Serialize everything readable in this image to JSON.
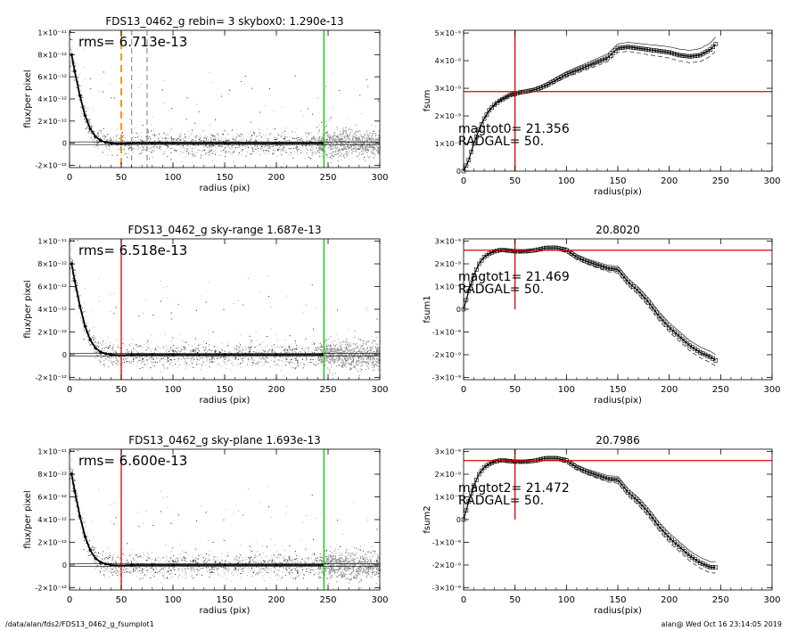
{
  "footer": {
    "left": "/data/alan/fds2/FDS13_0462_g_fsumplot1",
    "right": "alan@  Wed Oct 16 23:14:05 2019"
  },
  "chart_data": [
    {
      "type": "scatter",
      "title": "FDS13_0462_g rebin= 3    skybox0:  1.290e-13",
      "xlabel": "radius (pix)",
      "ylabel": "flux/per pixel",
      "xlim": [
        0,
        300
      ],
      "ylim": [
        -2.2e-12,
        1.02e-11
      ],
      "x_ticks": [
        0,
        50,
        100,
        150,
        200,
        250,
        300
      ],
      "y_ticks": [
        -2e-12,
        0,
        2e-12,
        4e-12,
        6e-12,
        8e-12,
        1e-11
      ],
      "y_tick_labels": [
        "-2×10⁻¹²",
        "0",
        "2×10⁻¹²",
        "4×10⁻¹²",
        "6×10⁻¹²",
        "8×10⁻¹²",
        "1×10⁻¹¹"
      ],
      "annotations": [
        "rms= 6.713e-13"
      ],
      "profile": {
        "x": [
          2,
          5,
          10,
          15,
          20,
          25,
          30,
          35,
          40,
          50,
          60,
          80,
          100,
          150,
          200,
          245
        ],
        "y": [
          8e-12,
          6.5e-12,
          4.3e-12,
          2.5e-12,
          1.3e-12,
          6e-13,
          2.5e-13,
          8e-14,
          0.0,
          -5e-14,
          0.0,
          0.0,
          0.0,
          0.0,
          0.0,
          0.0
        ]
      },
      "vlines": [
        {
          "x": 50,
          "color": "#ff8800",
          "style": "dashed"
        },
        {
          "x": 60,
          "color": "#999999",
          "style": "dashed"
        },
        {
          "x": 75,
          "color": "#999999",
          "style": "dashed"
        },
        {
          "x": 246,
          "color": "#00cc00",
          "style": "solid"
        }
      ],
      "hlines": [
        0
      ]
    },
    {
      "type": "line",
      "title": "",
      "xlabel": "radius(pix)",
      "ylabel": "fsum",
      "xlim": [
        0,
        300
      ],
      "ylim": [
        0,
        5.1e-09
      ],
      "x_ticks": [
        0,
        50,
        100,
        150,
        200,
        250,
        300
      ],
      "y_ticks": [
        0,
        1e-09,
        2e-09,
        3e-09,
        4e-09,
        5e-09
      ],
      "y_tick_labels": [
        "0",
        "1×10⁻⁹",
        "2×10⁻⁹",
        "3×10⁻⁹",
        "4×10⁻⁹",
        "5×10⁻⁹"
      ],
      "annotations": [
        "magtot0=  21.356",
        "RADGAL=     50."
      ],
      "series": [
        {
          "x": [
            0,
            5,
            10,
            15,
            20,
            25,
            30,
            35,
            40,
            45,
            50,
            55,
            60,
            70,
            80,
            90,
            100,
            110,
            120,
            130,
            140,
            150,
            160,
            170,
            180,
            190,
            200,
            210,
            220,
            230,
            240,
            245
          ],
          "y": [
            0,
            4e-10,
            1e-09,
            1.5e-09,
            1.9e-09,
            2.2e-09,
            2.4e-09,
            2.55e-09,
            2.65e-09,
            2.75e-09,
            2.8e-09,
            2.85e-09,
            2.88e-09,
            2.95e-09,
            3.1e-09,
            3.3e-09,
            3.5e-09,
            3.65e-09,
            3.8e-09,
            3.95e-09,
            4.1e-09,
            4.45e-09,
            4.5e-09,
            4.45e-09,
            4.4e-09,
            4.35e-09,
            4.3e-09,
            4.2e-09,
            4.15e-09,
            4.2e-09,
            4.4e-09,
            4.6e-09
          ]
        }
      ],
      "vlines": [
        {
          "x": 50,
          "color": "#dd0000"
        }
      ],
      "hlines": [
        {
          "y": 2.88e-09,
          "color": "#dd0000"
        }
      ]
    },
    {
      "type": "scatter",
      "title": "FDS13_0462_g sky-range  1.687e-13",
      "xlabel": "radius (pix)",
      "ylabel": "flux/per pixel",
      "xlim": [
        0,
        300
      ],
      "ylim": [
        -2.2e-12,
        1.02e-11
      ],
      "x_ticks": [
        0,
        50,
        100,
        150,
        200,
        250,
        300
      ],
      "y_ticks": [
        -2e-12,
        0,
        2e-12,
        4e-12,
        6e-12,
        8e-12,
        1e-11
      ],
      "y_tick_labels": [
        "-2×10⁻¹²",
        "0",
        "2×10⁻¹²",
        "4×10⁻¹²",
        "6×10⁻¹²",
        "8×10⁻¹²",
        "1×10⁻¹¹"
      ],
      "annotations": [
        "rms= 6.518e-13"
      ],
      "profile": {
        "x": [
          2,
          5,
          10,
          15,
          20,
          25,
          30,
          35,
          40,
          50,
          60,
          80,
          100,
          150,
          200,
          245
        ],
        "y": [
          8e-12,
          6.5e-12,
          4.3e-12,
          2.5e-12,
          1.3e-12,
          6e-13,
          2.5e-13,
          8e-14,
          0.0,
          -5e-14,
          0.0,
          0.0,
          0.0,
          0.0,
          0.0,
          0.0
        ]
      },
      "vlines": [
        {
          "x": 50,
          "color": "#dd0000",
          "style": "solid"
        },
        {
          "x": 246,
          "color": "#00cc00",
          "style": "solid"
        }
      ],
      "hlines": [
        0
      ]
    },
    {
      "type": "line",
      "title": "20.8020",
      "xlabel": "radius(pix)",
      "ylabel": "fsum1",
      "xlim": [
        0,
        300
      ],
      "ylim": [
        -3.1e-09,
        3.1e-09
      ],
      "x_ticks": [
        0,
        50,
        100,
        150,
        200,
        250,
        300
      ],
      "y_ticks": [
        -3e-09,
        -2e-09,
        -1e-09,
        0,
        1e-09,
        2e-09,
        3e-09
      ],
      "y_tick_labels": [
        "-3×10⁻⁹",
        "-2×10⁻⁹",
        "-1×10⁻⁹",
        "0",
        "1×10⁻⁹",
        "2×10⁻⁹",
        "3×10⁻⁹"
      ],
      "annotations": [
        "magtot1=  21.469",
        "RADGAL=     50."
      ],
      "series": [
        {
          "x": [
            0,
            5,
            10,
            15,
            20,
            25,
            30,
            35,
            40,
            50,
            60,
            70,
            80,
            90,
            100,
            110,
            120,
            130,
            140,
            150,
            160,
            170,
            180,
            190,
            200,
            210,
            220,
            230,
            240,
            245
          ],
          "y": [
            0,
            8e-10,
            1.5e-09,
            2e-09,
            2.3e-09,
            2.45e-09,
            2.55e-09,
            2.6e-09,
            2.6e-09,
            2.55e-09,
            2.55e-09,
            2.6e-09,
            2.7e-09,
            2.7e-09,
            2.6e-09,
            2.3e-09,
            2.1e-09,
            1.95e-09,
            1.8e-09,
            1.75e-09,
            1.2e-09,
            8e-10,
            3e-10,
            -3e-10,
            -8e-10,
            -1.2e-09,
            -1.6e-09,
            -1.9e-09,
            -2.1e-09,
            -2.25e-09
          ]
        }
      ],
      "vlines": [
        {
          "x": 50,
          "color": "#dd0000"
        }
      ],
      "hlines": [
        {
          "y": 2.6e-09,
          "color": "#dd0000"
        }
      ]
    },
    {
      "type": "scatter",
      "title": "FDS13_0462_g sky-plane  1.693e-13",
      "xlabel": "radius (pix)",
      "ylabel": "flux/per pixel",
      "xlim": [
        0,
        300
      ],
      "ylim": [
        -2.2e-12,
        1.02e-11
      ],
      "x_ticks": [
        0,
        50,
        100,
        150,
        200,
        250,
        300
      ],
      "y_ticks": [
        -2e-12,
        0,
        2e-12,
        4e-12,
        6e-12,
        8e-12,
        1e-11
      ],
      "y_tick_labels": [
        "-2×10⁻¹²",
        "0",
        "2×10⁻¹²",
        "4×10⁻¹²",
        "6×10⁻¹²",
        "8×10⁻¹²",
        "1×10⁻¹¹"
      ],
      "annotations": [
        "rms= 6.600e-13"
      ],
      "profile": {
        "x": [
          2,
          5,
          10,
          15,
          20,
          25,
          30,
          35,
          40,
          50,
          60,
          80,
          100,
          150,
          200,
          245
        ],
        "y": [
          8e-12,
          6.5e-12,
          4.3e-12,
          2.5e-12,
          1.3e-12,
          6e-13,
          2.5e-13,
          8e-14,
          0.0,
          -5e-14,
          0.0,
          0.0,
          0.0,
          0.0,
          0.0,
          0.0
        ]
      },
      "vlines": [
        {
          "x": 50,
          "color": "#dd0000",
          "style": "solid"
        },
        {
          "x": 246,
          "color": "#00cc00",
          "style": "solid"
        }
      ],
      "hlines": [
        0
      ]
    },
    {
      "type": "line",
      "title": "20.7986",
      "xlabel": "radius(pix)",
      "ylabel": "fsum2",
      "xlim": [
        0,
        300
      ],
      "ylim": [
        -3.1e-09,
        3.1e-09
      ],
      "x_ticks": [
        0,
        50,
        100,
        150,
        200,
        250,
        300
      ],
      "y_ticks": [
        -3e-09,
        -2e-09,
        -1e-09,
        0,
        1e-09,
        2e-09,
        3e-09
      ],
      "y_tick_labels": [
        "-3×10⁻⁹",
        "-2×10⁻⁹",
        "-1×10⁻⁹",
        "0",
        "1×10⁻⁹",
        "2×10⁻⁹",
        "3×10⁻⁹"
      ],
      "annotations": [
        "magtot2=  21.472",
        "RADGAL=     50."
      ],
      "series": [
        {
          "x": [
            0,
            5,
            10,
            15,
            20,
            25,
            30,
            35,
            40,
            50,
            60,
            70,
            80,
            90,
            100,
            110,
            120,
            130,
            140,
            150,
            160,
            170,
            180,
            190,
            200,
            210,
            220,
            230,
            240,
            245
          ],
          "y": [
            0,
            8e-10,
            1.5e-09,
            2e-09,
            2.3e-09,
            2.45e-09,
            2.55e-09,
            2.6e-09,
            2.6e-09,
            2.55e-09,
            2.55e-09,
            2.6e-09,
            2.7e-09,
            2.7e-09,
            2.6e-09,
            2.3e-09,
            2.1e-09,
            1.95e-09,
            1.8e-09,
            1.75e-09,
            1.2e-09,
            8e-10,
            3e-10,
            -3e-10,
            -8e-10,
            -1.2e-09,
            -1.6e-09,
            -1.9e-09,
            -2.1e-09,
            -2.1e-09
          ]
        }
      ],
      "vlines": [
        {
          "x": 50,
          "color": "#dd0000"
        }
      ],
      "hlines": [
        {
          "y": 2.6e-09,
          "color": "#dd0000"
        }
      ]
    }
  ]
}
